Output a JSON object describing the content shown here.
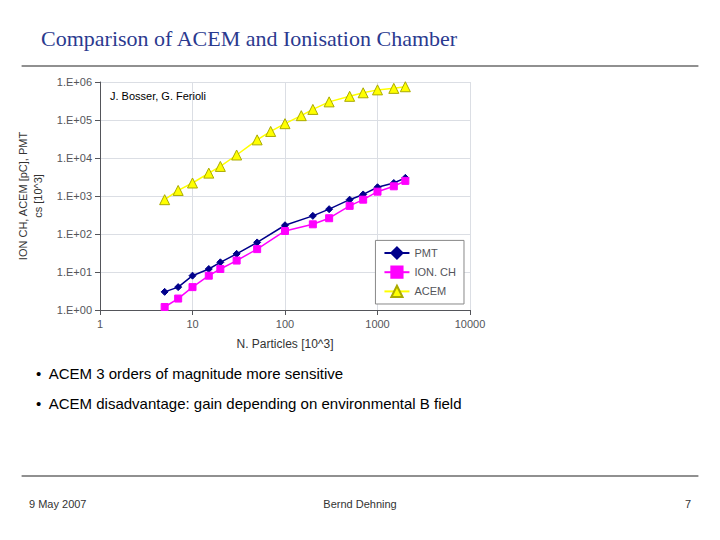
{
  "chart_data": {
    "type": "line",
    "title": "Comparison of ACEM and Ionisation Chamber",
    "xlabel": "N. Particles [10^3]",
    "ylabel": "ION CH, ACEM [pC], PMT\ncs [10^3]",
    "annotations": [
      "J. Bosser, G. Ferioli"
    ],
    "notes": [
      "•  ACEM 3 orders of magnitude more sensitive",
      "•  ACEM disadvantage: gain depending on environmental B field"
    ],
    "footer": [
      "9 May 2007",
      "Bernd Dehning",
      "7"
    ],
    "log": true,
    "grid": true,
    "legend": "lower right",
    "xlim": [
      1,
      10000
    ],
    "ylim": [
      1,
      1000000
    ],
    "xticks": [
      1,
      10,
      100,
      1000,
      10000
    ],
    "yticks": [
      {
        "value": 1,
        "label": "1.E+00"
      },
      {
        "value": 10,
        "label": "1.E+01"
      },
      {
        "value": 100,
        "label": "1.E+02"
      },
      {
        "value": 1000,
        "label": "1.E+03"
      },
      {
        "value": 10000,
        "label": "1.E+04"
      },
      {
        "value": 100000,
        "label": "1.E+05"
      },
      {
        "value": 1000000,
        "label": "1.E+06"
      }
    ],
    "series": [
      {
        "name": "PMT",
        "color": "#00008B",
        "marker": "diamond",
        "x": [
          5,
          7,
          10,
          15,
          20,
          30,
          50,
          100,
          200,
          300,
          500,
          700,
          1000,
          1500,
          2000
        ],
        "values": [
          3,
          4,
          8,
          12,
          18,
          30,
          60,
          170,
          300,
          450,
          800,
          1100,
          1700,
          2200,
          3000
        ]
      },
      {
        "name": "ION. CH",
        "color": "#FF00FF",
        "marker": "square",
        "x": [
          5,
          7,
          10,
          15,
          20,
          30,
          50,
          100,
          200,
          300,
          500,
          700,
          1000,
          1500,
          2000
        ],
        "values": [
          1.2,
          2,
          4,
          8,
          12,
          20,
          40,
          120,
          180,
          260,
          550,
          800,
          1300,
          1800,
          2500
        ]
      },
      {
        "name": "ACEM",
        "color": "#FFFF00",
        "marker": "triangle",
        "x": [
          5,
          7,
          10,
          15,
          20,
          30,
          50,
          70,
          100,
          150,
          200,
          300,
          500,
          700,
          1000,
          1500,
          2000
        ],
        "values": [
          800,
          1400,
          2200,
          4000,
          6000,
          12000,
          30000,
          50000,
          80000,
          130000,
          190000,
          300000,
          420000,
          520000,
          620000,
          680000,
          750000
        ]
      }
    ]
  }
}
